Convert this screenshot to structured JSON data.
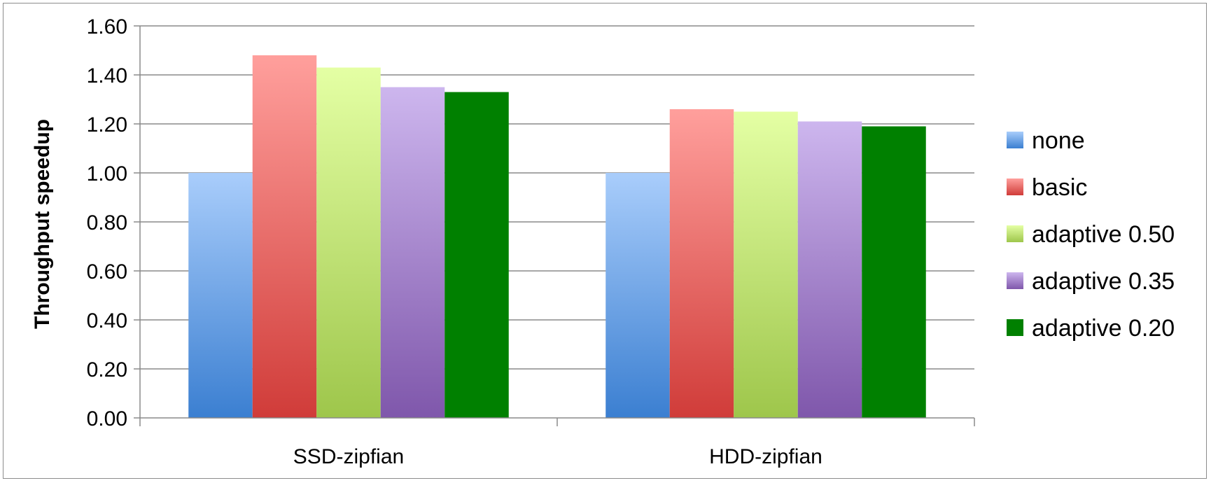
{
  "chart_data": {
    "type": "bar",
    "ylabel": "Throughput speedup",
    "xlabel": "",
    "categories": [
      "SSD-zipfian",
      "HDD-zipfian"
    ],
    "ylim": [
      0,
      1.6
    ],
    "yticks": [
      "0.00",
      "0.20",
      "0.40",
      "0.60",
      "0.80",
      "1.00",
      "1.20",
      "1.40",
      "1.60"
    ],
    "grid": true,
    "legend_position": "right",
    "series": [
      {
        "name": "none",
        "values": [
          1.0,
          1.0
        ],
        "color_top": "#a9cdfb",
        "color_bottom": "#3b7fd1"
      },
      {
        "name": "basic",
        "values": [
          1.48,
          1.26
        ],
        "color_top": "#ff9f9c",
        "color_bottom": "#d03c39"
      },
      {
        "name": "adaptive 0.50",
        "values": [
          1.43,
          1.25
        ],
        "color_top": "#e4ffa4",
        "color_bottom": "#9ec64b"
      },
      {
        "name": "adaptive 0.35",
        "values": [
          1.35,
          1.21
        ],
        "color_top": "#cdb6ee",
        "color_bottom": "#7f57ab"
      },
      {
        "name": "adaptive 0.20",
        "values": [
          1.33,
          1.19
        ],
        "color_top": "#008000",
        "color_bottom": "#008000"
      }
    ]
  }
}
